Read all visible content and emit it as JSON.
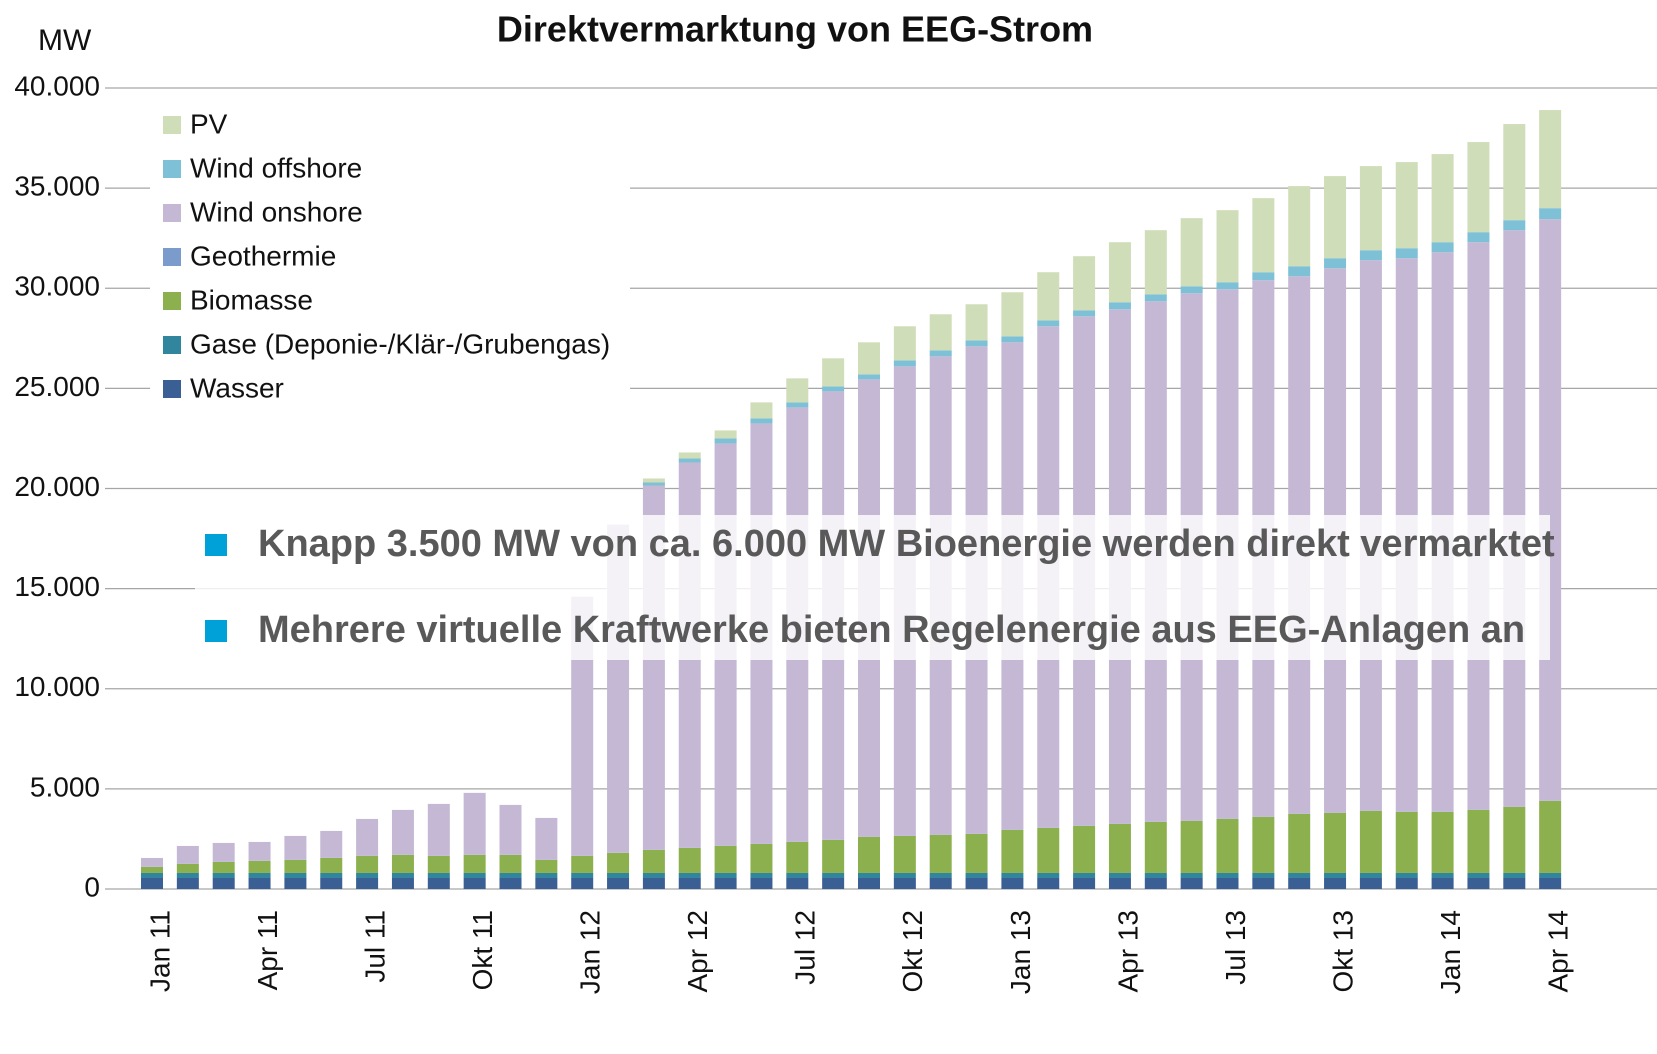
{
  "chart_data": {
    "type": "stacked_bar",
    "title": "Direktvermarktung von EEG-Strom",
    "y_label": "MW",
    "categories": [
      "Jan 11",
      null,
      null,
      "Apr 11",
      null,
      null,
      "Jul 11",
      null,
      null,
      "Okt 11",
      null,
      null,
      "Jan 12",
      null,
      null,
      "Apr 12",
      null,
      null,
      "Jul 12",
      null,
      null,
      "Okt 12",
      null,
      null,
      "Jan 13",
      null,
      null,
      "Apr 13",
      null,
      null,
      "Jul 13",
      null,
      null,
      "Okt 13",
      null,
      null,
      "Jan 14",
      null,
      null,
      "Apr 14"
    ],
    "series": [
      {
        "name": "Wasser",
        "color": "#3a5f95",
        "values": [
          550,
          550,
          550,
          550,
          550,
          550,
          550,
          550,
          550,
          550,
          550,
          550,
          550,
          550,
          550,
          550,
          550,
          550,
          550,
          550,
          550,
          550,
          550,
          550,
          550,
          550,
          550,
          550,
          550,
          550,
          550,
          550,
          550,
          550,
          550,
          550,
          550,
          550,
          550,
          550
        ]
      },
      {
        "name": "Gase (Deponie-/Klär-/Grubengas)",
        "color": "#31859c",
        "values": [
          250,
          250,
          250,
          250,
          250,
          250,
          250,
          250,
          250,
          250,
          250,
          250,
          250,
          250,
          250,
          250,
          250,
          250,
          250,
          250,
          250,
          250,
          250,
          250,
          250,
          250,
          250,
          250,
          250,
          250,
          250,
          250,
          250,
          250,
          250,
          250,
          250,
          250,
          250,
          250
        ]
      },
      {
        "name": "Biomasse",
        "color": "#8db04e",
        "values": [
          300,
          450,
          550,
          600,
          650,
          750,
          850,
          900,
          850,
          900,
          900,
          650,
          850,
          1000,
          1150,
          1250,
          1350,
          1450,
          1550,
          1650,
          1800,
          1850,
          1900,
          1950,
          2150,
          2250,
          2350,
          2450,
          2550,
          2600,
          2700,
          2800,
          2950,
          3000,
          3100,
          3050,
          3050,
          3150,
          3300,
          3600
        ]
      },
      {
        "name": "Geothermie",
        "color": "#7a9bcc",
        "values": [
          10,
          10,
          10,
          10,
          10,
          10,
          10,
          10,
          10,
          10,
          10,
          10,
          10,
          10,
          10,
          10,
          10,
          10,
          10,
          10,
          10,
          10,
          10,
          10,
          10,
          10,
          10,
          10,
          10,
          10,
          10,
          10,
          10,
          10,
          10,
          10,
          10,
          10,
          10,
          10
        ]
      },
      {
        "name": "Wind onshore",
        "color": "#c4b8d4",
        "values": [
          440,
          890,
          940,
          940,
          1190,
          1340,
          1840,
          2240,
          2590,
          3090,
          2490,
          2090,
          12940,
          16390,
          18190,
          19240,
          20090,
          20990,
          21690,
          22390,
          22840,
          23440,
          23890,
          24340,
          24340,
          25040,
          25440,
          25690,
          25990,
          26340,
          26440,
          26790,
          26840,
          27190,
          27490,
          27640,
          27940,
          28340,
          28790,
          29040
        ]
      },
      {
        "name": "Wind offshore",
        "color": "#7ec1d6",
        "values": [
          0,
          0,
          0,
          0,
          0,
          0,
          0,
          0,
          0,
          0,
          0,
          0,
          0,
          0,
          150,
          200,
          250,
          250,
          250,
          250,
          250,
          300,
          300,
          300,
          300,
          300,
          300,
          350,
          350,
          350,
          350,
          400,
          500,
          500,
          500,
          500,
          500,
          500,
          500,
          550
        ]
      },
      {
        "name": "PV",
        "color": "#cfddb8",
        "values": [
          0,
          0,
          0,
          0,
          0,
          0,
          0,
          0,
          0,
          0,
          0,
          0,
          0,
          0,
          200,
          300,
          400,
          800,
          1200,
          1400,
          1600,
          1700,
          1800,
          1800,
          2200,
          2400,
          2700,
          3000,
          3200,
          3400,
          3600,
          3700,
          4000,
          4100,
          4200,
          4300,
          4400,
          4500,
          4800,
          4900
        ]
      }
    ],
    "ylim": [
      0,
      40000
    ],
    "yticks": [
      0,
      {
        "value": 5000,
        "label": "5.000"
      },
      {
        "value": 10000,
        "label": "10.000"
      },
      {
        "value": 15000,
        "label": "15.000"
      },
      {
        "value": 20000,
        "label": "20.000"
      },
      {
        "value": 25000,
        "label": "25.000"
      },
      {
        "value": 30000,
        "label": "30.000"
      },
      {
        "value": 35000,
        "label": "35.000"
      },
      {
        "value": 40000,
        "label": "40.000"
      }
    ],
    "grid": true,
    "legend": "upper left",
    "annotations": [
      "Knapp 3.500 MW von ca. 6.000 MW Bioenergie werden direkt vermarktet",
      "Mehrere virtuelle Kraftwerke bieten Regelenergie aus EEG-Anlagen an"
    ]
  }
}
